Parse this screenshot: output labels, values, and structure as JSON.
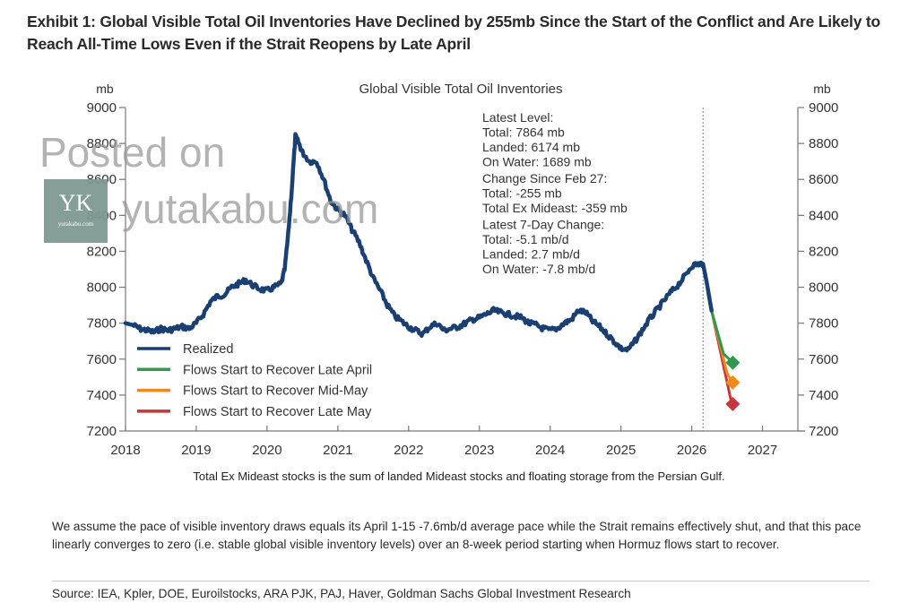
{
  "exhibit_title": "Exhibit 1: Global Visible Total Oil Inventories Have Declined by 255mb Since the Start of the Conflict and Are Likely to Reach All-Time Lows Even if the Strait Reopens by Late April",
  "chart_data": {
    "type": "line",
    "title": "Global Visible Total Oil Inventories",
    "ylabel_left": "mb",
    "ylabel_right": "mb",
    "xlabel": "",
    "xlim": [
      2018,
      2027.5
    ],
    "ylim": [
      7200,
      9000
    ],
    "x_ticks": [
      "2018",
      "2019",
      "2020",
      "2021",
      "2022",
      "2023",
      "2024",
      "2025",
      "2026",
      "2027"
    ],
    "y_ticks": [
      "7200",
      "7400",
      "7600",
      "7800",
      "8000",
      "8200",
      "8400",
      "8600",
      "8800",
      "9000"
    ],
    "grid": false,
    "legend_position": "bottom-left",
    "conflict_start_marker": 2026.16,
    "series": [
      {
        "name": "Realized",
        "color": "#1a3f73",
        "x": [
          2018.0,
          2018.1,
          2018.2,
          2018.3,
          2018.4,
          2018.5,
          2018.6,
          2018.7,
          2018.8,
          2018.9,
          2019.0,
          2019.1,
          2019.2,
          2019.3,
          2019.4,
          2019.5,
          2019.6,
          2019.7,
          2019.8,
          2019.9,
          2020.0,
          2020.1,
          2020.2,
          2020.25,
          2020.3,
          2020.35,
          2020.4,
          2020.45,
          2020.5,
          2020.6,
          2020.7,
          2020.8,
          2020.9,
          2021.0,
          2021.1,
          2021.2,
          2021.3,
          2021.4,
          2021.5,
          2021.6,
          2021.7,
          2021.8,
          2021.9,
          2022.0,
          2022.1,
          2022.2,
          2022.3,
          2022.4,
          2022.5,
          2022.6,
          2022.7,
          2022.8,
          2022.9,
          2023.0,
          2023.1,
          2023.2,
          2023.3,
          2023.4,
          2023.5,
          2023.6,
          2023.7,
          2023.8,
          2023.9,
          2024.0,
          2024.1,
          2024.2,
          2024.3,
          2024.4,
          2024.5,
          2024.6,
          2024.7,
          2024.8,
          2024.9,
          2025.0,
          2025.1,
          2025.2,
          2025.3,
          2025.4,
          2025.5,
          2025.6,
          2025.7,
          2025.8,
          2025.9,
          2026.0,
          2026.1,
          2026.16,
          2026.22,
          2026.28
        ],
        "values": [
          7800,
          7790,
          7770,
          7760,
          7750,
          7770,
          7760,
          7770,
          7780,
          7770,
          7800,
          7850,
          7920,
          7950,
          7960,
          8000,
          8020,
          8040,
          8010,
          7990,
          7980,
          8000,
          8020,
          8100,
          8300,
          8550,
          8840,
          8800,
          8750,
          8700,
          8700,
          8600,
          8480,
          8430,
          8400,
          8320,
          8250,
          8150,
          8050,
          7980,
          7900,
          7840,
          7810,
          7780,
          7760,
          7740,
          7780,
          7800,
          7760,
          7770,
          7780,
          7800,
          7820,
          7830,
          7850,
          7870,
          7860,
          7850,
          7840,
          7830,
          7800,
          7790,
          7770,
          7760,
          7770,
          7800,
          7820,
          7870,
          7860,
          7810,
          7780,
          7740,
          7700,
          7660,
          7650,
          7700,
          7760,
          7820,
          7870,
          7920,
          7970,
          8010,
          8060,
          8120,
          8130,
          8130,
          8010,
          7870
        ]
      },
      {
        "name": "Flows Start to Recover Late April",
        "color": "#2e9a4f",
        "x": [
          2026.28,
          2026.45,
          2026.58
        ],
        "values": [
          7870,
          7630,
          7580
        ]
      },
      {
        "name": "Flows Start to Recover Mid-May",
        "color": "#f08a1c",
        "x": [
          2026.28,
          2026.5,
          2026.58
        ],
        "values": [
          7870,
          7520,
          7470
        ]
      },
      {
        "name": "Flows Start to Recover Late May",
        "color": "#c6363a",
        "x": [
          2026.28,
          2026.55,
          2026.58
        ],
        "values": [
          7870,
          7380,
          7350
        ]
      }
    ],
    "annotation_blocks": [
      {
        "heading": "Latest Level:",
        "lines": [
          "Total: 7864 mb",
          "Landed: 6174 mb",
          "On Water: 1689 mb"
        ]
      },
      {
        "heading": "Change Since Feb 27:",
        "lines": [
          "Total: -255 mb",
          "Total Ex Mideast: -359 mb"
        ]
      },
      {
        "heading": "Latest 7-Day Change:",
        "lines": [
          "Total: -5.1 mb/d",
          "Landed: 2.7 mb/d",
          "On Water: -7.8 mb/d"
        ]
      }
    ]
  },
  "chart_note": "Total Ex Mideast stocks is the sum of landed Mideast stocks and floating storage from the Persian Gulf.",
  "assumption_text": "We assume the pace of visible inventory draws equals its April 1-15 -7.6mb/d average pace while the Strait remains effectively shut, and that this pace linearly converges to zero (i.e. stable global visible inventory levels) over an 8-week period starting when Hormuz flows start to recover.",
  "source_text": "Source: IEA, Kpler, DOE, Euroilstocks, ARA PJK, PAJ, Haver, Goldman Sachs Global Investment Research",
  "watermark": {
    "line1": "Posted on",
    "line2": "yutakabu.com",
    "logo_initials": "YK",
    "logo_site": "yutakabu.com"
  }
}
